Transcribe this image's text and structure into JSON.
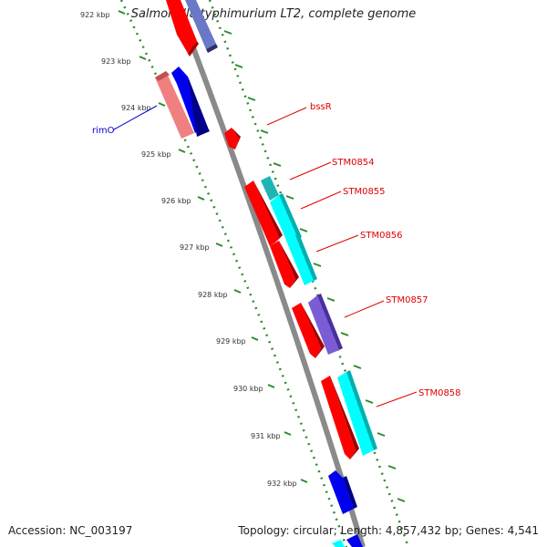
{
  "title": "Salmonella typhimurium LT2, complete genome",
  "footer": {
    "accession": "Accession: NC_003197",
    "summary": "Topology: circular; Length: 4,857,432 bp; Genes: 4,541"
  },
  "colors": {
    "backbone": "#8a8a8a",
    "tick": "#2e8b2e",
    "label_red": "#e00000",
    "label_blue": "#0000cc",
    "gene_red": "#ff0000",
    "gene_blue": "#0000ee",
    "gene_pink": "#f08080",
    "gene_cyan": "#00ffff",
    "gene_purple": "#7b5cd6",
    "gene_teal": "#1fb5b5"
  },
  "kbp_labels": [
    "922 kbp",
    "923 kbp",
    "924 kbp",
    "925 kbp",
    "926 kbp",
    "927 kbp",
    "928 kbp",
    "929 kbp",
    "930 kbp",
    "931 kbp",
    "932 kbp"
  ],
  "genes": [
    {
      "name": "rimO",
      "strand": "minus",
      "color": "blue"
    },
    {
      "name": "bssR",
      "strand": "plus",
      "color": "red"
    },
    {
      "name": "STM0854",
      "strand": "plus",
      "color": "teal"
    },
    {
      "name": "STM0855",
      "strand": "plus",
      "color": "cyan"
    },
    {
      "name": "STM0856",
      "strand": "plus",
      "color": "cyan"
    },
    {
      "name": "STM0857",
      "strand": "plus",
      "color": "purple"
    },
    {
      "name": "STM0858",
      "strand": "plus",
      "color": "cyan"
    }
  ]
}
